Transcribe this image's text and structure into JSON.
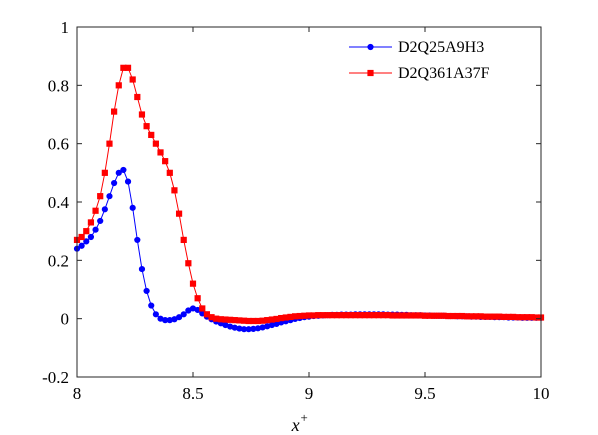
{
  "chart_data": {
    "type": "line",
    "xlabel": "x",
    "xlabel_superscript": "+",
    "ylabel": "",
    "xlim": [
      8,
      10
    ],
    "ylim": [
      -0.2,
      1
    ],
    "xticks": [
      8,
      8.5,
      9,
      9.5,
      10
    ],
    "xtick_labels": [
      "8",
      "8.5",
      "9",
      "9.5",
      "10"
    ],
    "yticks": [
      -0.2,
      0,
      0.2,
      0.4,
      0.6,
      0.8,
      1
    ],
    "ytick_labels": [
      "-0.2",
      "0",
      "0.2",
      "0.4",
      "0.6",
      "0.8",
      "1"
    ],
    "grid": false,
    "legend_position": "top-right",
    "series": [
      {
        "name": "D2Q25A9H3",
        "color": "#0000ff",
        "marker": "circle",
        "x": [
          8.0,
          8.02,
          8.04,
          8.06,
          8.08,
          8.1,
          8.12,
          8.14,
          8.16,
          8.18,
          8.2,
          8.22,
          8.24,
          8.26,
          8.28,
          8.3,
          8.32,
          8.34,
          8.36,
          8.38,
          8.4,
          8.42,
          8.44,
          8.46,
          8.48,
          8.5,
          8.52,
          8.54,
          8.56,
          8.58,
          8.6,
          8.62,
          8.64,
          8.66,
          8.68,
          8.7,
          8.72,
          8.74,
          8.76,
          8.78,
          8.8,
          8.82,
          8.84,
          8.86,
          8.88,
          8.9,
          8.92,
          8.94,
          8.96,
          8.98,
          9.0,
          9.02,
          9.04,
          9.06,
          9.08,
          9.1,
          9.12,
          9.14,
          9.16,
          9.18,
          9.2,
          9.22,
          9.24,
          9.26,
          9.28,
          9.3,
          9.32,
          9.34,
          9.36,
          9.38,
          9.4,
          9.42,
          9.44,
          9.46,
          9.48,
          9.5,
          9.52,
          9.54,
          9.56,
          9.58,
          9.6,
          9.62,
          9.64,
          9.66,
          9.68,
          9.7,
          9.72,
          9.74,
          9.76,
          9.78,
          9.8,
          9.82,
          9.84,
          9.86,
          9.88,
          9.9,
          9.92,
          9.94,
          9.96,
          9.98,
          10.0
        ],
        "y": [
          0.24,
          0.25,
          0.265,
          0.28,
          0.305,
          0.335,
          0.375,
          0.42,
          0.465,
          0.5,
          0.51,
          0.47,
          0.38,
          0.27,
          0.17,
          0.095,
          0.045,
          0.015,
          0.0,
          -0.005,
          -0.005,
          -0.002,
          0.005,
          0.015,
          0.028,
          0.035,
          0.03,
          0.018,
          0.007,
          -0.002,
          -0.01,
          -0.016,
          -0.022,
          -0.027,
          -0.031,
          -0.034,
          -0.036,
          -0.036,
          -0.035,
          -0.033,
          -0.03,
          -0.026,
          -0.022,
          -0.018,
          -0.013,
          -0.009,
          -0.005,
          -0.001,
          0.002,
          0.005,
          0.007,
          0.009,
          0.01,
          0.011,
          0.012,
          0.013,
          0.013,
          0.014,
          0.014,
          0.014,
          0.015,
          0.015,
          0.015,
          0.015,
          0.015,
          0.015,
          0.015,
          0.014,
          0.014,
          0.014,
          0.013,
          0.013,
          0.012,
          0.012,
          0.012,
          0.011,
          0.011,
          0.01,
          0.01,
          0.01,
          0.009,
          0.009,
          0.008,
          0.008,
          0.008,
          0.007,
          0.007,
          0.006,
          0.006,
          0.006,
          0.005,
          0.005,
          0.005,
          0.004,
          0.004,
          0.004,
          0.003,
          0.003,
          0.003,
          0.003,
          0.003
        ]
      },
      {
        "name": "D2Q361A37F",
        "color": "#ff0000",
        "marker": "square",
        "x": [
          8.0,
          8.02,
          8.04,
          8.06,
          8.08,
          8.1,
          8.12,
          8.14,
          8.16,
          8.18,
          8.2,
          8.22,
          8.24,
          8.26,
          8.28,
          8.3,
          8.32,
          8.34,
          8.36,
          8.38,
          8.4,
          8.42,
          8.44,
          8.46,
          8.48,
          8.5,
          8.52,
          8.54,
          8.56,
          8.58,
          8.6,
          8.62,
          8.64,
          8.66,
          8.68,
          8.7,
          8.72,
          8.74,
          8.76,
          8.78,
          8.8,
          8.82,
          8.84,
          8.86,
          8.88,
          8.9,
          8.92,
          8.94,
          8.96,
          8.98,
          9.0,
          9.02,
          9.04,
          9.06,
          9.08,
          9.1,
          9.12,
          9.14,
          9.16,
          9.18,
          9.2,
          9.22,
          9.24,
          9.26,
          9.28,
          9.3,
          9.32,
          9.34,
          9.36,
          9.38,
          9.4,
          9.42,
          9.44,
          9.46,
          9.48,
          9.5,
          9.52,
          9.54,
          9.56,
          9.58,
          9.6,
          9.62,
          9.64,
          9.66,
          9.68,
          9.7,
          9.72,
          9.74,
          9.76,
          9.78,
          9.8,
          9.82,
          9.84,
          9.86,
          9.88,
          9.9,
          9.92,
          9.94,
          9.96,
          9.98,
          10.0
        ],
        "y": [
          0.27,
          0.28,
          0.3,
          0.33,
          0.37,
          0.42,
          0.5,
          0.6,
          0.71,
          0.8,
          0.86,
          0.86,
          0.82,
          0.76,
          0.7,
          0.66,
          0.63,
          0.6,
          0.57,
          0.54,
          0.5,
          0.44,
          0.36,
          0.27,
          0.19,
          0.12,
          0.07,
          0.035,
          0.015,
          0.005,
          0.0,
          -0.002,
          -0.003,
          -0.004,
          -0.005,
          -0.006,
          -0.007,
          -0.008,
          -0.008,
          -0.008,
          -0.007,
          -0.005,
          -0.003,
          -0.001,
          0.002,
          0.004,
          0.006,
          0.008,
          0.009,
          0.01,
          0.011,
          0.011,
          0.012,
          0.012,
          0.012,
          0.012,
          0.012,
          0.012,
          0.012,
          0.012,
          0.012,
          0.012,
          0.012,
          0.012,
          0.012,
          0.012,
          0.012,
          0.012,
          0.011,
          0.011,
          0.011,
          0.011,
          0.011,
          0.011,
          0.011,
          0.01,
          0.01,
          0.01,
          0.01,
          0.01,
          0.009,
          0.009,
          0.009,
          0.009,
          0.008,
          0.008,
          0.008,
          0.008,
          0.007,
          0.007,
          0.007,
          0.007,
          0.006,
          0.006,
          0.006,
          0.005,
          0.005,
          0.005,
          0.005,
          0.004,
          0.004
        ]
      }
    ]
  }
}
